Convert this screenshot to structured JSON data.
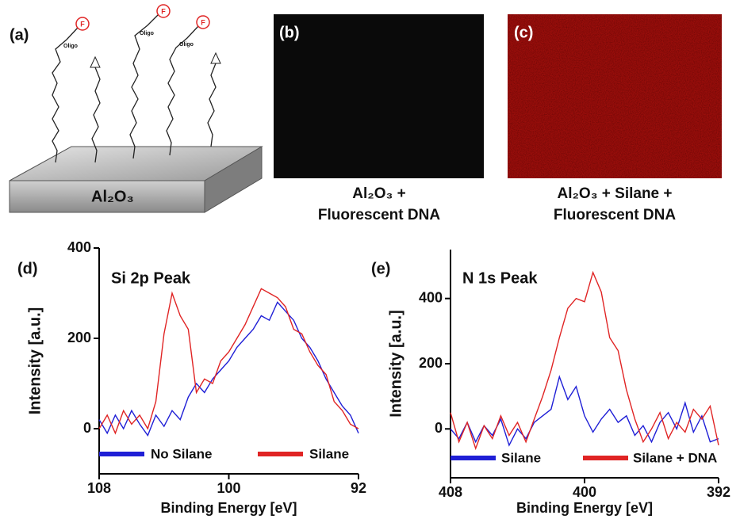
{
  "panel_a": {
    "label": "(a)",
    "substrate": "Al₂O₃",
    "fluorophore": "F",
    "probe": "Oligo"
  },
  "panel_b": {
    "label": "(b)",
    "caption": [
      "Al₂O₃ +",
      "Fluorescent DNA"
    ]
  },
  "panel_c": {
    "label": "(c)",
    "caption": [
      "Al₂O₃ + Silane +",
      "Fluorescent DNA"
    ]
  },
  "chart_data": [
    {
      "type": "line",
      "panel_label": "(d)",
      "title": "Si 2p Peak",
      "x_label": "Binding Energy [eV]",
      "y_label": "Intensity [a.u.]",
      "x": [
        108,
        107.5,
        107,
        106.5,
        106,
        105.5,
        105,
        104.5,
        104,
        103.5,
        103,
        102.5,
        102,
        101.5,
        101,
        100.5,
        100,
        99.5,
        99,
        98.5,
        98,
        97.5,
        97,
        96.5,
        96,
        95.5,
        95,
        94.5,
        94,
        93.5,
        93,
        92.5,
        92
      ],
      "series": [
        {
          "name": "No Silane",
          "color": "#1f1fd6",
          "values": [
            20,
            -10,
            30,
            0,
            40,
            10,
            -15,
            30,
            5,
            40,
            20,
            70,
            100,
            80,
            110,
            130,
            150,
            180,
            200,
            220,
            250,
            240,
            280,
            260,
            240,
            200,
            180,
            150,
            110,
            80,
            50,
            30,
            -10
          ]
        },
        {
          "name": "Silane",
          "color": "#e02424",
          "values": [
            0,
            30,
            -10,
            40,
            10,
            30,
            0,
            60,
            210,
            300,
            250,
            220,
            80,
            110,
            100,
            150,
            170,
            200,
            230,
            270,
            310,
            300,
            290,
            270,
            220,
            210,
            170,
            140,
            120,
            60,
            40,
            10,
            0
          ]
        }
      ],
      "xlim": [
        108,
        92
      ],
      "xticks": [
        108,
        100,
        92
      ],
      "ylim": [
        -100,
        400
      ],
      "yticks": [
        0,
        200,
        400
      ]
    },
    {
      "type": "line",
      "panel_label": "(e)",
      "title": "N 1s Peak",
      "x_label": "Binding Energy [eV]",
      "y_label": "Intensity [a.u.]",
      "x": [
        408,
        407.5,
        407,
        406.5,
        406,
        405.5,
        405,
        404.5,
        404,
        403.5,
        403,
        402.5,
        402,
        401.5,
        401,
        400.5,
        400,
        399.5,
        399,
        398.5,
        398,
        397.5,
        397,
        396.5,
        396,
        395.5,
        395,
        394.5,
        394,
        393.5,
        393,
        392.5,
        392
      ],
      "series": [
        {
          "name": "Silane",
          "color": "#1f1fd6",
          "values": [
            0,
            -30,
            20,
            -40,
            10,
            -20,
            30,
            -50,
            0,
            -30,
            20,
            40,
            60,
            160,
            90,
            130,
            40,
            -10,
            30,
            60,
            20,
            40,
            -20,
            10,
            -40,
            20,
            50,
            0,
            80,
            -10,
            40,
            -40,
            -30
          ]
        },
        {
          "name": "Silane + DNA",
          "color": "#e02424",
          "values": [
            50,
            -40,
            20,
            -60,
            10,
            -30,
            40,
            -20,
            20,
            -40,
            30,
            100,
            180,
            280,
            370,
            400,
            390,
            480,
            420,
            280,
            240,
            120,
            30,
            -40,
            0,
            50,
            -30,
            20,
            -10,
            60,
            30,
            70,
            -50
          ]
        }
      ],
      "xlim": [
        408,
        392
      ],
      "xticks": [
        408,
        400,
        392
      ],
      "ylim": [
        -150,
        550
      ],
      "yticks": [
        0,
        200,
        400
      ]
    }
  ]
}
